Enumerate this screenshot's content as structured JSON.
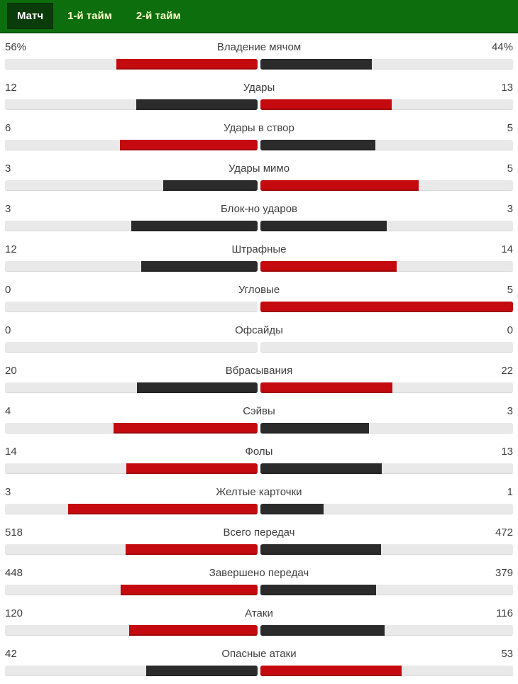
{
  "tabs": [
    {
      "label": "Матч",
      "active": true
    },
    {
      "label": "1-й тайм",
      "active": false
    },
    {
      "label": "2-й тайм",
      "active": false
    }
  ],
  "colors": {
    "header_bg": "#0c6e0c",
    "header_border": "#0a5408",
    "active_tab_bg": "#0a3b0a",
    "active_tab_text": "#ffffff",
    "tab_text": "#ffffcc",
    "leading_bar": "#c40a0e",
    "trailing_bar": "#2b2b2b",
    "track": "#e9e9e9",
    "text": "#3f3f3f"
  },
  "chart_data": {
    "type": "bar",
    "layout": "paired horizontal bars from center; higher value of each pair is red, lower is dark gray; bar length = value / (home+away) of row half-width",
    "rows": [
      {
        "label": "Владение мячом",
        "home": "56%",
        "away": "44%",
        "home_value": 56,
        "away_value": 44
      },
      {
        "label": "Удары",
        "home": "12",
        "away": "13",
        "home_value": 12,
        "away_value": 13
      },
      {
        "label": "Удары в створ",
        "home": "6",
        "away": "5",
        "home_value": 6,
        "away_value": 5
      },
      {
        "label": "Удары мимо",
        "home": "3",
        "away": "5",
        "home_value": 3,
        "away_value": 5
      },
      {
        "label": "Блок-но ударов",
        "home": "3",
        "away": "3",
        "home_value": 3,
        "away_value": 3
      },
      {
        "label": "Штрафные",
        "home": "12",
        "away": "14",
        "home_value": 12,
        "away_value": 14
      },
      {
        "label": "Угловые",
        "home": "0",
        "away": "5",
        "home_value": 0,
        "away_value": 5
      },
      {
        "label": "Офсайды",
        "home": "0",
        "away": "0",
        "home_value": 0,
        "away_value": 0
      },
      {
        "label": "Вбрасывания",
        "home": "20",
        "away": "22",
        "home_value": 20,
        "away_value": 22
      },
      {
        "label": "Сэйвы",
        "home": "4",
        "away": "3",
        "home_value": 4,
        "away_value": 3
      },
      {
        "label": "Фолы",
        "home": "14",
        "away": "13",
        "home_value": 14,
        "away_value": 13
      },
      {
        "label": "Желтые карточки",
        "home": "3",
        "away": "1",
        "home_value": 3,
        "away_value": 1
      },
      {
        "label": "Всего передач",
        "home": "518",
        "away": "472",
        "home_value": 518,
        "away_value": 472
      },
      {
        "label": "Завершено передач",
        "home": "448",
        "away": "379",
        "home_value": 448,
        "away_value": 379
      },
      {
        "label": "Атаки",
        "home": "120",
        "away": "116",
        "home_value": 120,
        "away_value": 116
      },
      {
        "label": "Опасные атаки",
        "home": "42",
        "away": "53",
        "home_value": 42,
        "away_value": 53
      }
    ]
  }
}
